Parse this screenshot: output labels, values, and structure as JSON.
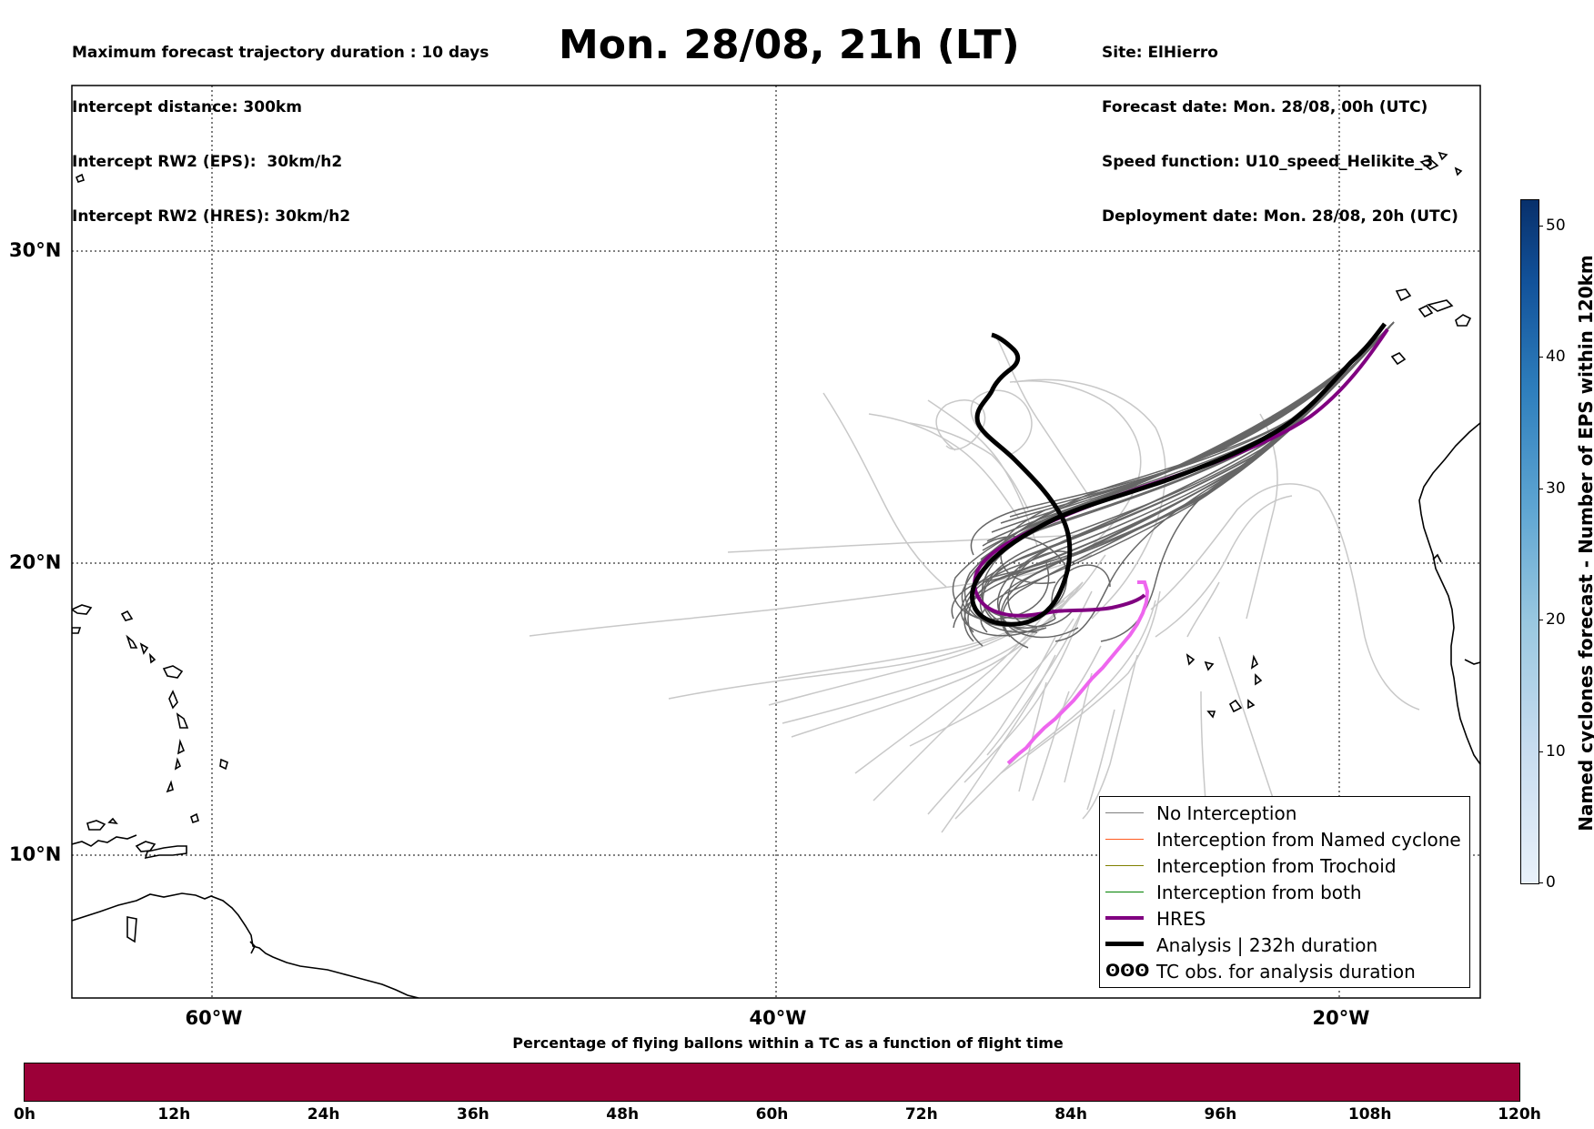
{
  "header_left": [
    "Maximum forecast trajectory duration : 10 days",
    "Intercept distance: 300km",
    "Intercept RW2 (EPS):  30km/h2",
    "Intercept RW2 (HRES): 30km/h2"
  ],
  "header_right": [
    "Site: ElHierro",
    "Forecast date: Mon. 28/08, 00h (UTC)",
    "Speed function: U10_speed_Helikite_3",
    "Deployment date: Mon. 28/08, 20h (UTC)"
  ],
  "title": "Mon. 28/08, 21h (LT)",
  "map": {
    "lat_labels": [
      "30°N",
      "20°N",
      "10°N"
    ],
    "lon_labels": [
      "60°W",
      "40°W",
      "20°W"
    ],
    "gridlines": "dotted"
  },
  "legend": {
    "items": [
      {
        "label": "No Interception",
        "color": "#7f7f7f"
      },
      {
        "label": "Interception from Named cyclone",
        "color": "#ff5a1f"
      },
      {
        "label": "Interception from Trochoid",
        "color": "#808000"
      },
      {
        "label": "Interception from both",
        "color": "#008000"
      },
      {
        "label": "HRES",
        "color": "#800080"
      },
      {
        "label": "Analysis | 232h duration",
        "color": "#000000"
      },
      {
        "label": "TC obs. for analysis duration",
        "symbol": "ʘʘʘ"
      }
    ]
  },
  "colorbar": {
    "label": "Named cyclones forecast - Number of EPS within 120km",
    "ticks": [
      "0",
      "10",
      "20",
      "30",
      "40",
      "50"
    ],
    "max": 52,
    "colormap": "Blues"
  },
  "pct_bar": {
    "title": "Percentage of flying ballons within a TC as a function of flight time",
    "ticks": [
      "0h",
      "12h",
      "24h",
      "36h",
      "48h",
      "60h",
      "72h",
      "84h",
      "96h",
      "108h",
      "120h"
    ],
    "color": "#9c0038"
  },
  "colors": {
    "eps_light": "#c8c8c8",
    "eps_dark": "#666666",
    "hres": "#800080",
    "hres_forecast": "#ee66ee",
    "analysis": "#000000"
  }
}
